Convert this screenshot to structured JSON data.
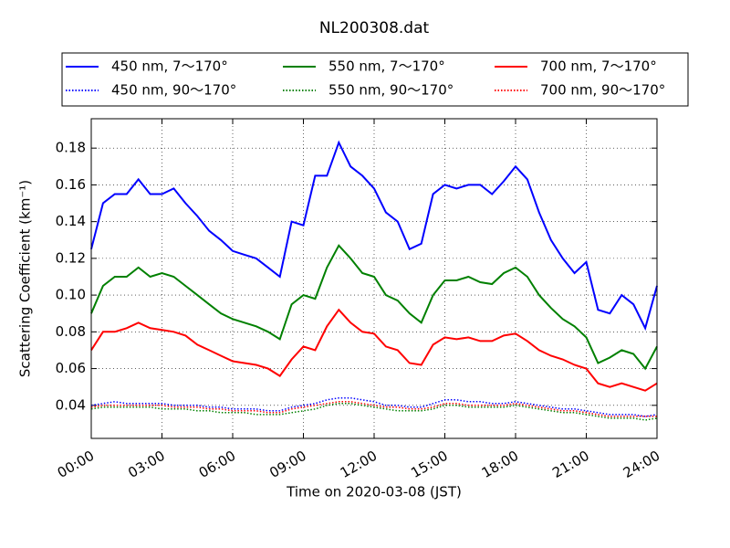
{
  "chart_data": {
    "type": "line",
    "title": "NL200308.dat",
    "x_label": "Time on 2020-03-08 (JST)",
    "y_label": "Scattering Coefficient (km⁻¹)",
    "x": [
      0,
      0.5,
      1,
      1.5,
      2,
      2.5,
      3,
      3.5,
      4,
      4.5,
      5,
      5.5,
      6,
      6.5,
      7,
      7.5,
      8,
      8.5,
      9,
      9.5,
      10,
      10.5,
      11,
      11.5,
      12,
      12.5,
      13,
      13.5,
      14,
      14.5,
      15,
      15.5,
      16,
      16.5,
      17,
      17.5,
      18,
      18.5,
      19,
      19.5,
      20,
      20.5,
      21,
      21.5,
      22,
      22.5,
      23,
      23.5,
      24
    ],
    "xlim": [
      0,
      24
    ],
    "xticks": [
      {
        "value": 0,
        "label": "00:00"
      },
      {
        "value": 3,
        "label": "03:00"
      },
      {
        "value": 6,
        "label": "06:00"
      },
      {
        "value": 9,
        "label": "09:00"
      },
      {
        "value": 12,
        "label": "12:00"
      },
      {
        "value": 15,
        "label": "15:00"
      },
      {
        "value": 18,
        "label": "18:00"
      },
      {
        "value": 21,
        "label": "21:00"
      },
      {
        "value": 24,
        "label": "24:00"
      }
    ],
    "ylim": [
      0.022,
      0.196
    ],
    "yticks": [
      0.04,
      0.06,
      0.08,
      {
        "value": 0.1,
        "label": "0.10"
      },
      0.12,
      0.14,
      0.16,
      0.18
    ],
    "grid": true,
    "legend": "upper center",
    "series": [
      {
        "name": "450 nm, 7～170°",
        "color": "#0000ff",
        "style": "solid",
        "values": [
          0.125,
          0.15,
          0.155,
          0.155,
          0.163,
          0.155,
          0.155,
          0.158,
          0.15,
          0.143,
          0.135,
          0.13,
          0.124,
          0.122,
          0.12,
          0.115,
          0.11,
          0.14,
          0.138,
          0.165,
          0.165,
          0.183,
          0.17,
          0.165,
          0.158,
          0.145,
          0.14,
          0.125,
          0.128,
          0.155,
          0.16,
          0.158,
          0.16,
          0.16,
          0.155,
          0.162,
          0.17,
          0.163,
          0.145,
          0.13,
          0.12,
          0.112,
          0.118,
          0.092,
          0.09,
          0.1,
          0.095,
          0.082,
          0.105
        ]
      },
      {
        "name": "450 nm, 90～170°",
        "color": "#0000ff",
        "style": "dotted",
        "values": [
          0.04,
          0.041,
          0.042,
          0.041,
          0.041,
          0.041,
          0.041,
          0.04,
          0.04,
          0.04,
          0.039,
          0.039,
          0.038,
          0.038,
          0.038,
          0.037,
          0.037,
          0.039,
          0.04,
          0.041,
          0.043,
          0.044,
          0.044,
          0.043,
          0.042,
          0.04,
          0.04,
          0.039,
          0.039,
          0.041,
          0.043,
          0.043,
          0.042,
          0.042,
          0.041,
          0.041,
          0.042,
          0.041,
          0.04,
          0.039,
          0.038,
          0.038,
          0.037,
          0.036,
          0.035,
          0.035,
          0.035,
          0.034,
          0.035
        ]
      },
      {
        "name": "550 nm, 7～170°",
        "color": "#008000",
        "style": "solid",
        "values": [
          0.09,
          0.105,
          0.11,
          0.11,
          0.115,
          0.11,
          0.112,
          0.11,
          0.105,
          0.1,
          0.095,
          0.09,
          0.087,
          0.085,
          0.083,
          0.08,
          0.076,
          0.095,
          0.1,
          0.098,
          0.115,
          0.127,
          0.12,
          0.112,
          0.11,
          0.1,
          0.097,
          0.09,
          0.085,
          0.1,
          0.108,
          0.108,
          0.11,
          0.107,
          0.106,
          0.112,
          0.115,
          0.11,
          0.1,
          0.093,
          0.087,
          0.083,
          0.077,
          0.063,
          0.066,
          0.07,
          0.068,
          0.06,
          0.072
        ]
      },
      {
        "name": "550 nm, 90～170°",
        "color": "#008000",
        "style": "dotted",
        "values": [
          0.038,
          0.039,
          0.039,
          0.039,
          0.039,
          0.039,
          0.038,
          0.038,
          0.038,
          0.037,
          0.037,
          0.036,
          0.036,
          0.036,
          0.035,
          0.035,
          0.035,
          0.036,
          0.037,
          0.038,
          0.04,
          0.041,
          0.041,
          0.04,
          0.039,
          0.038,
          0.037,
          0.037,
          0.037,
          0.038,
          0.04,
          0.04,
          0.039,
          0.039,
          0.039,
          0.039,
          0.04,
          0.039,
          0.038,
          0.037,
          0.036,
          0.036,
          0.035,
          0.034,
          0.033,
          0.033,
          0.033,
          0.032,
          0.033
        ]
      },
      {
        "name": "700 nm, 7～170°",
        "color": "#ff0000",
        "style": "solid",
        "values": [
          0.07,
          0.08,
          0.08,
          0.082,
          0.085,
          0.082,
          0.081,
          0.08,
          0.078,
          0.073,
          0.07,
          0.067,
          0.064,
          0.063,
          0.062,
          0.06,
          0.056,
          0.065,
          0.072,
          0.07,
          0.083,
          0.092,
          0.085,
          0.08,
          0.079,
          0.072,
          0.07,
          0.063,
          0.062,
          0.073,
          0.077,
          0.076,
          0.077,
          0.075,
          0.075,
          0.078,
          0.079,
          0.075,
          0.07,
          0.067,
          0.065,
          0.062,
          0.06,
          0.052,
          0.05,
          0.052,
          0.05,
          0.048,
          0.052
        ]
      },
      {
        "name": "700 nm, 90～170°",
        "color": "#ff0000",
        "style": "dotted",
        "values": [
          0.039,
          0.04,
          0.04,
          0.04,
          0.04,
          0.04,
          0.04,
          0.039,
          0.039,
          0.039,
          0.038,
          0.038,
          0.037,
          0.037,
          0.037,
          0.036,
          0.036,
          0.038,
          0.039,
          0.04,
          0.041,
          0.042,
          0.042,
          0.041,
          0.04,
          0.039,
          0.039,
          0.038,
          0.038,
          0.039,
          0.041,
          0.041,
          0.04,
          0.04,
          0.04,
          0.04,
          0.041,
          0.04,
          0.039,
          0.038,
          0.037,
          0.037,
          0.036,
          0.035,
          0.034,
          0.034,
          0.034,
          0.034,
          0.034
        ]
      }
    ]
  }
}
